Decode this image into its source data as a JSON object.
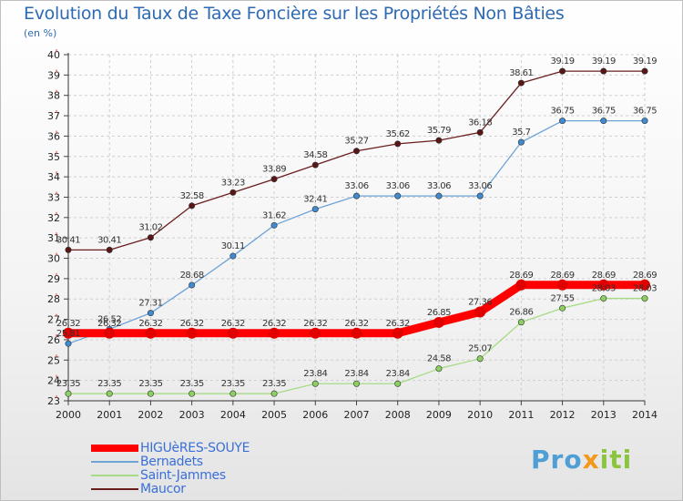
{
  "title": "Evolution du Taux de Taxe Foncière sur les Propriétés Non Bâties",
  "unit_label": "(en %)",
  "logo": {
    "part1": "Pro",
    "part2": "x",
    "part3": "iti"
  },
  "chart_data": {
    "type": "line",
    "x": [
      2000,
      2001,
      2002,
      2003,
      2004,
      2005,
      2006,
      2007,
      2008,
      2009,
      2010,
      2011,
      2012,
      2013,
      2014
    ],
    "ylim": [
      23,
      40
    ],
    "yticks": [
      23,
      24,
      25,
      26,
      27,
      28,
      29,
      30,
      31,
      32,
      33,
      34,
      35,
      36,
      37,
      38,
      39,
      40
    ],
    "grid": true,
    "legend_position": "bottom-left",
    "series": [
      {
        "name": "Maucor",
        "color": "#6b1e1e",
        "marker": "#5a1515",
        "width": 1.3,
        "values": [
          30.41,
          30.41,
          31.02,
          32.58,
          33.23,
          33.89,
          34.58,
          35.27,
          35.62,
          35.79,
          36.18,
          38.61,
          39.19,
          39.19,
          39.19
        ]
      },
      {
        "name": "Bernadets",
        "color": "#6fa3d6",
        "marker": "#3f8ad0",
        "width": 1.3,
        "values": [
          25.81,
          26.52,
          27.31,
          28.68,
          30.11,
          31.62,
          32.41,
          33.06,
          33.06,
          33.06,
          33.06,
          35.7,
          36.75,
          36.75,
          36.75
        ]
      },
      {
        "name": "Saint-Jammes",
        "color": "#a6db85",
        "marker": "#8bd060",
        "width": 1.3,
        "values": [
          23.35,
          23.35,
          23.35,
          23.35,
          23.35,
          23.35,
          23.84,
          23.84,
          23.84,
          24.58,
          25.07,
          26.86,
          27.55,
          28.03,
          28.03
        ]
      },
      {
        "name": "HIGUèRES-SOUYE",
        "color": "#ff0000",
        "marker": "#e00000",
        "width": 9,
        "values": [
          26.32,
          26.32,
          26.32,
          26.32,
          26.32,
          26.32,
          26.32,
          26.32,
          26.32,
          26.85,
          27.36,
          28.69,
          28.69,
          28.69,
          28.69
        ]
      }
    ],
    "legend_order": [
      "HIGUèRES-SOUYE",
      "Bernadets",
      "Saint-Jammes",
      "Maucor"
    ]
  }
}
